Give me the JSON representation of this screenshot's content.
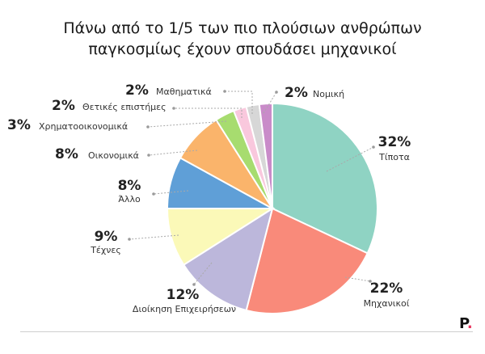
{
  "page": {
    "title_line1": "Πάνω από το 1/5 των πιο πλούσιων ανθρώπων",
    "title_line2": "παγκοσμίως έχουν σπουδάσει μηχανικοί",
    "logo_letter": "P",
    "logo_dot": "."
  },
  "chart_data": {
    "type": "pie",
    "title": "Πάνω από το 1/5 των πιο πλούσιων ανθρώπων παγκοσμίως έχουν σπουδάσει μηχανικοί",
    "unit": "%",
    "slices": [
      {
        "label": "Τίποτα",
        "value": 32,
        "value_label": "32%",
        "color": "#8fd3c3"
      },
      {
        "label": "Μηχανικοί",
        "value": 22,
        "value_label": "22%",
        "color": "#f98a7a"
      },
      {
        "label": "Διοίκηση Επιχειρήσεων",
        "value": 12,
        "value_label": "12%",
        "color": "#bcb7db"
      },
      {
        "label": "Τέχνες",
        "value": 9,
        "value_label": "9%",
        "color": "#fbf9b8"
      },
      {
        "label": "Άλλο",
        "value": 8,
        "value_label": "8%",
        "color": "#5f9fd7"
      },
      {
        "label": "Οικονομικά",
        "value": 8,
        "value_label": "8%",
        "color": "#fab46b"
      },
      {
        "label": "Χρηματοοικονομικά",
        "value": 3,
        "value_label": "3%",
        "color": "#a7dc6f"
      },
      {
        "label": "Θετικές επιστήμες",
        "value": 2,
        "value_label": "2%",
        "color": "#f9c8dd"
      },
      {
        "label": "Μαθηματικά",
        "value": 2,
        "value_label": "2%",
        "color": "#d7d7d7"
      },
      {
        "label": "Νομική",
        "value": 2,
        "value_label": "2%",
        "color": "#c98bc9"
      }
    ]
  }
}
